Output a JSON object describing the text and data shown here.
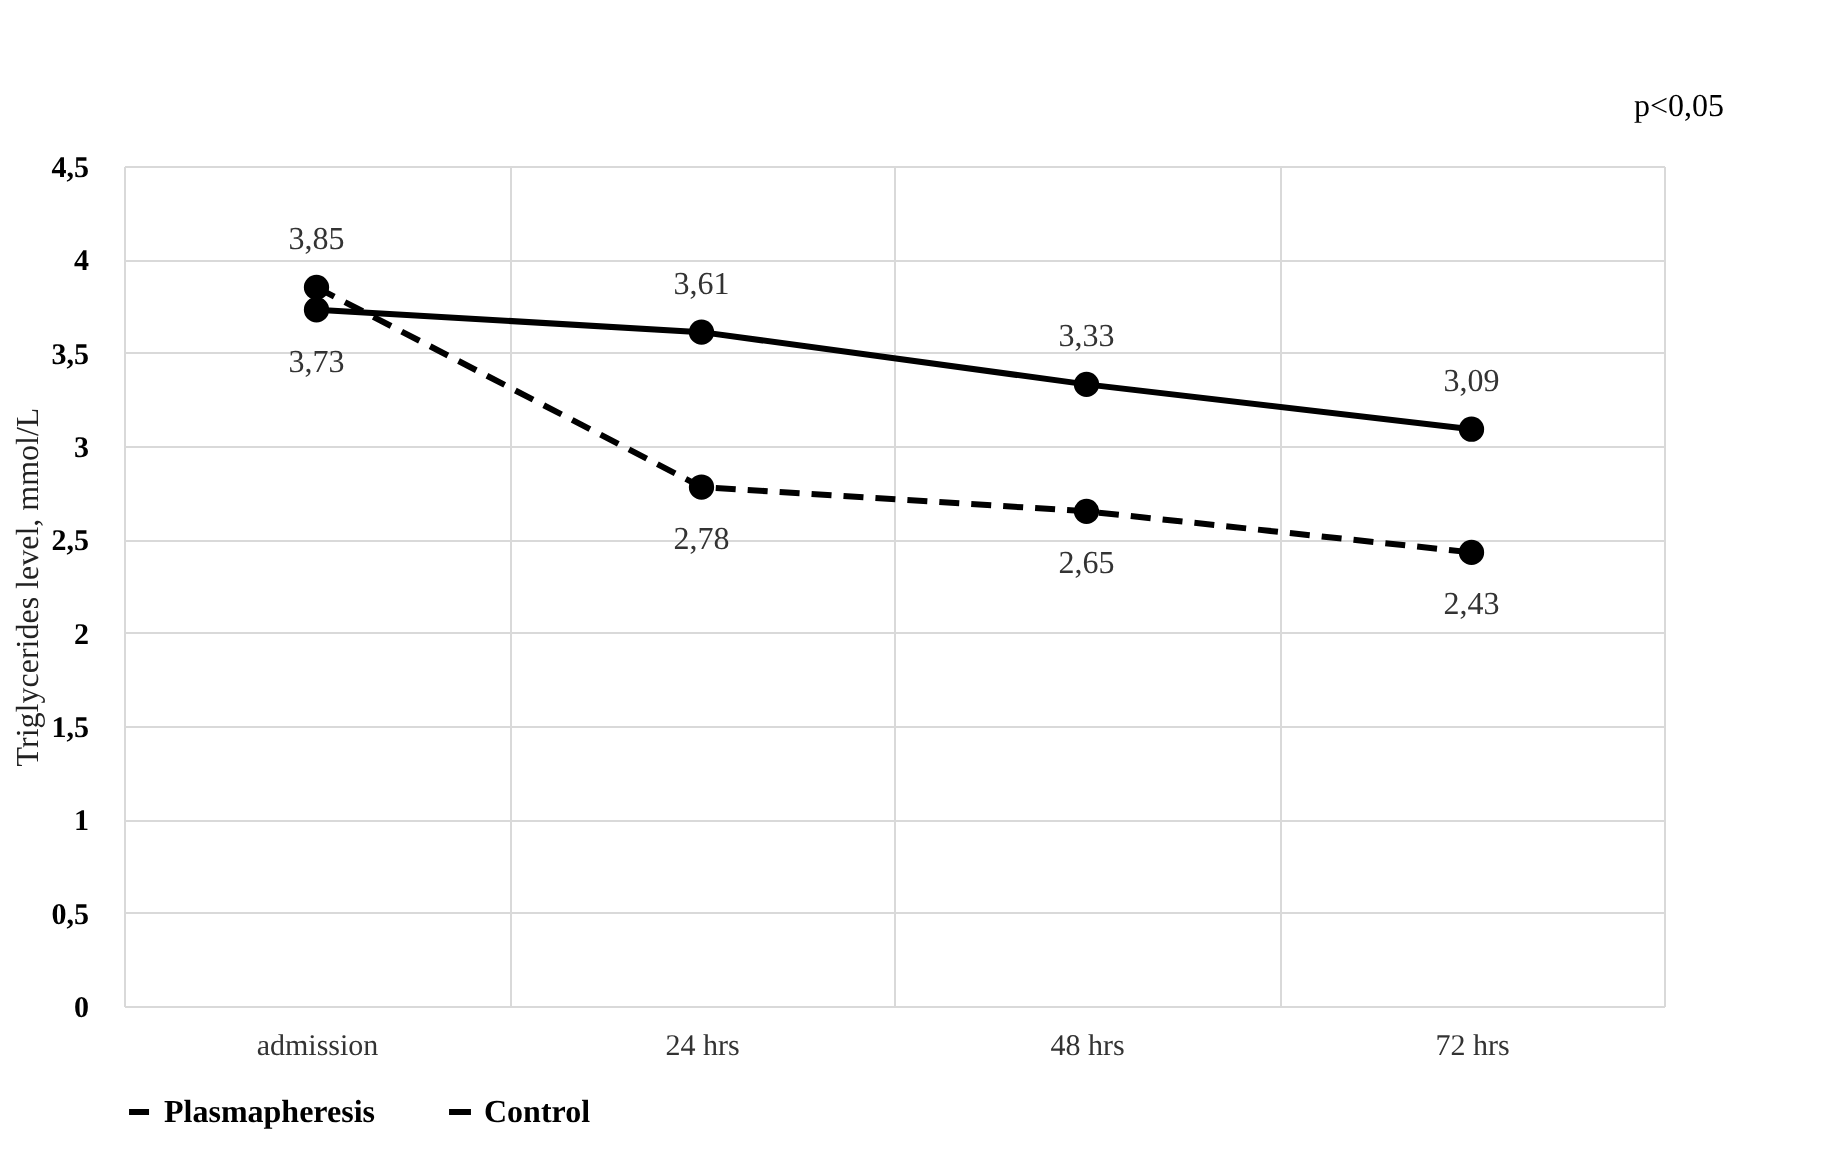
{
  "chart_data": {
    "type": "line",
    "ylabel": "Triglycerides level, mmol/L",
    "annotations": [
      "p<0,05"
    ],
    "categories": [
      "admission",
      "24 hrs",
      "48 hrs",
      "72 hrs"
    ],
    "series": [
      {
        "name": "Plasmapheresis",
        "color": "#000000",
        "line_style": "dashed",
        "values": [
          3.85,
          2.78,
          2.65,
          2.43
        ],
        "value_labels": [
          "3,85",
          "2,78",
          "2,65",
          "2,43"
        ]
      },
      {
        "name": "Control",
        "color": "#000000",
        "line_style": "solid",
        "values": [
          3.73,
          3.61,
          3.33,
          3.09
        ],
        "value_labels": [
          "3,73",
          "3,61",
          "3,33",
          "3,09"
        ]
      }
    ],
    "ylim": [
      0,
      4.5
    ],
    "yticks": [
      0,
      {
        "value": 0.5,
        "label": "0,5"
      },
      1,
      {
        "value": 1.5,
        "label": "1,5"
      },
      2,
      {
        "value": 2.5,
        "label": "2,5"
      },
      3,
      {
        "value": 3.5,
        "label": "3,5"
      },
      4,
      {
        "value": 4.5,
        "label": "4,5"
      }
    ],
    "grid": true,
    "legend": "bottom",
    "marker": "circle"
  }
}
